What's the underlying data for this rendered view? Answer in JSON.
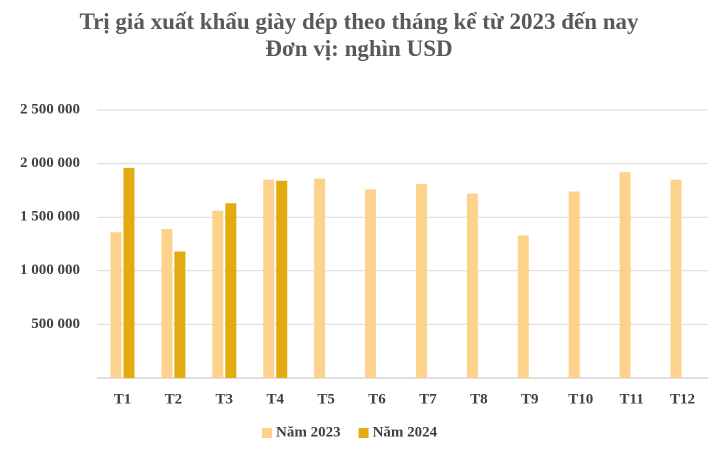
{
  "chart_data": {
    "type": "bar",
    "title": "Trị giá xuất khẩu giày dép theo tháng kể từ 2023 đến nay",
    "subtitle": "Đơn vị: nghìn USD",
    "categories": [
      "T1",
      "T2",
      "T3",
      "T4",
      "T5",
      "T6",
      "T7",
      "T8",
      "T9",
      "T10",
      "T11",
      "T12"
    ],
    "series": [
      {
        "name": "Năm 2023",
        "color": "#fdd28c",
        "values": [
          1360000,
          1390000,
          1560000,
          1850000,
          1860000,
          1760000,
          1810000,
          1720000,
          1330000,
          1740000,
          1920000,
          1850000
        ]
      },
      {
        "name": "Năm 2024",
        "color": "#e2ab10",
        "values": [
          1960000,
          1180000,
          1630000,
          1840000,
          null,
          null,
          null,
          null,
          null,
          null,
          null,
          null
        ]
      }
    ],
    "ylim": [
      0,
      2500000
    ],
    "yticks": [
      {
        "value": 500000,
        "label": "500 000"
      },
      {
        "value": 1000000,
        "label": "1 000 000"
      },
      {
        "value": 1500000,
        "label": "1 500 000"
      },
      {
        "value": 2000000,
        "label": "2 000 000"
      },
      {
        "value": 2500000,
        "label": "2 500 000"
      }
    ],
    "grid": true,
    "legend": "bottom"
  }
}
